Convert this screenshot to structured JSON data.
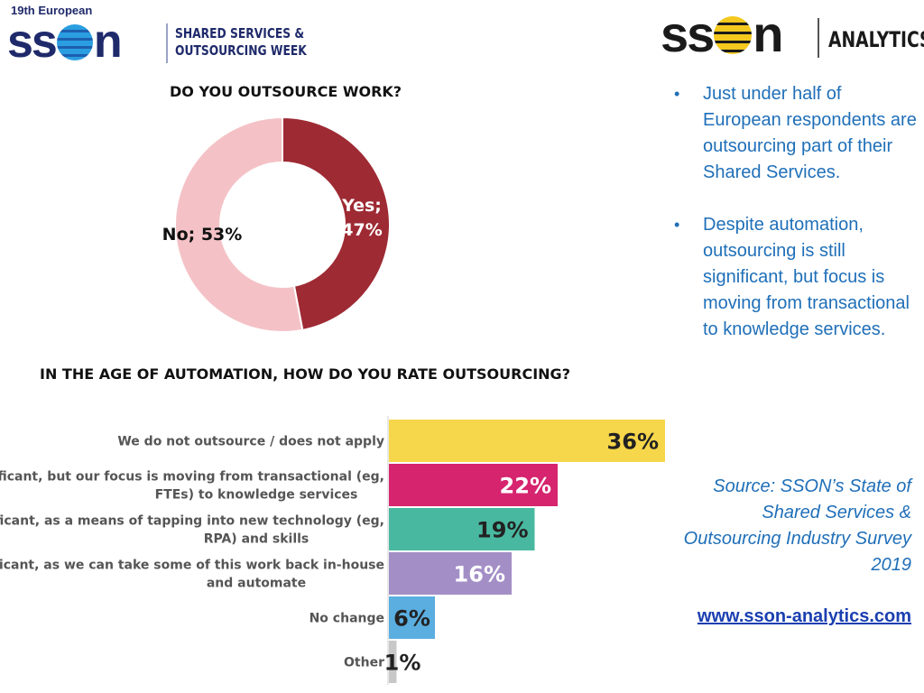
{
  "header": {
    "left_logo": {
      "edition": "19th European",
      "wordmark": "sson",
      "event_line1": "SHARED SERVICES &",
      "event_line2": "OUTSOURCING WEEK"
    },
    "right_logo": {
      "wordmark": "sson",
      "tagline": "ANALYTICS"
    }
  },
  "right_panel": {
    "bullets": [
      "Just under half of European respondents are outsourcing part of their Shared Services.",
      "Despite automation, outsourcing is still significant, but focus is moving from transactional to knowledge services."
    ],
    "source": "Source: SSON’s State of Shared Services & Outsourcing Industry Survey 2019",
    "link": "www.sson-analytics.com"
  },
  "chart_data": [
    {
      "type": "pie",
      "title": "DO YOU OUTSOURCE WORK?",
      "categories": [
        "Yes",
        "No"
      ],
      "values": [
        47,
        53
      ],
      "labels": [
        "Yes; 47%",
        "No; 53%"
      ],
      "colors": [
        "#9e2a33",
        "#f4c2c6"
      ]
    },
    {
      "type": "bar",
      "orientation": "horizontal",
      "title": "IN THE AGE OF AUTOMATION, HOW DO YOU RATE OUTSOURCING?",
      "categories": [
        "We do not outsource / does not apply",
        "ficant, but our focus is moving from transactional (eg, FTEs) to knowledge services",
        "ficant, as a means of tapping into new technology (eg, RPA) and skills",
        "ficant, as we can take some of this work back in-house and automate",
        "No change",
        "Other"
      ],
      "values": [
        36,
        22,
        19,
        16,
        6,
        1
      ],
      "labels": [
        "36%",
        "22%",
        "19%",
        "16%",
        "6%",
        "1%"
      ],
      "colors": [
        "#f6d64a",
        "#d6246e",
        "#49b8a0",
        "#a38fc6",
        "#5aaee0",
        "#c8c8c8"
      ],
      "label_colors": [
        "#222222",
        "#ffffff",
        "#222222",
        "#ffffff",
        "#222222",
        "#222222"
      ],
      "xlim": [
        0,
        36
      ]
    }
  ]
}
